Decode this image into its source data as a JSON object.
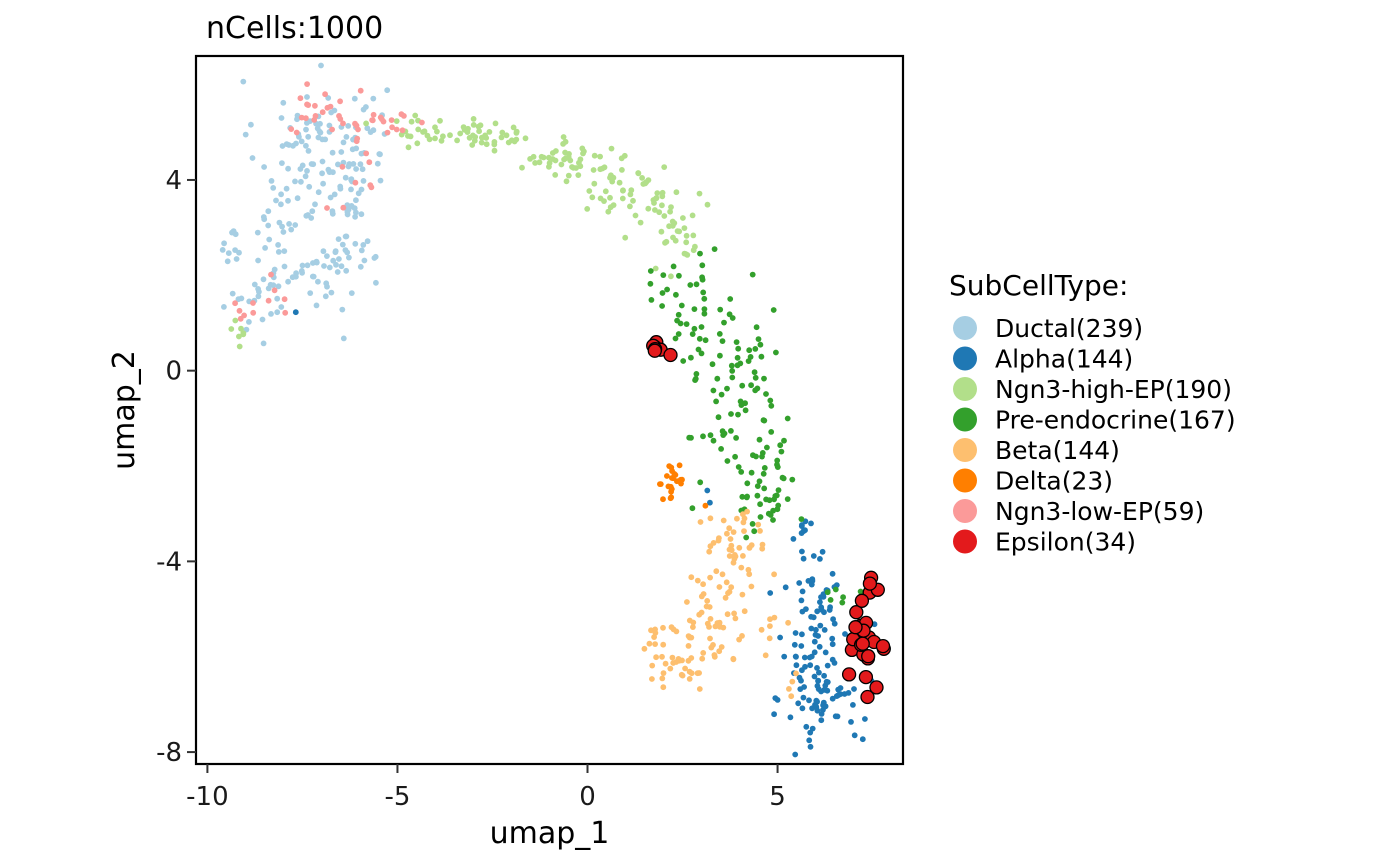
{
  "chart_data": {
    "type": "scatter",
    "title": "nCells:1000",
    "xlabel": "umap_1",
    "ylabel": "umap_2",
    "xlim": [
      -10.3,
      8.3
    ],
    "ylim": [
      -8.25,
      6.6
    ],
    "xticks": [
      -10,
      -5,
      0,
      5
    ],
    "yticks": [
      -8,
      -4,
      0,
      4
    ],
    "xtick_labels": [
      "-10",
      "-5",
      "0",
      "5"
    ],
    "ytick_labels": [
      "-8",
      "-4",
      "0",
      "4"
    ],
    "grid": false,
    "legend": {
      "title": "SubCellType:",
      "placement": "right"
    },
    "series": [
      {
        "name": "Ductal(239)",
        "color": "#A6CEE3",
        "highlight": false,
        "regions": [
          {
            "cx": -7.0,
            "cy": 4.7,
            "sx": 0.85,
            "sy": 0.7,
            "n": 95
          },
          {
            "cx": -6.3,
            "cy": 3.3,
            "sx": 0.4,
            "sy": 0.8,
            "n": 40
          },
          {
            "cx": -6.7,
            "cy": 2.0,
            "sx": 0.35,
            "sy": 0.5,
            "n": 25
          },
          {
            "cx": -8.0,
            "cy": 2.9,
            "sx": 0.45,
            "sy": 0.9,
            "n": 45
          },
          {
            "cx": -8.6,
            "cy": 1.5,
            "sx": 0.5,
            "sy": 0.3,
            "n": 20
          },
          {
            "cx": -9.3,
            "cy": 2.5,
            "sx": 0.12,
            "sy": 0.3,
            "n": 9
          },
          {
            "cx": -5.8,
            "cy": 5.1,
            "sx": 0.3,
            "sy": 0.35,
            "n": 5
          }
        ]
      },
      {
        "name": "Alpha(144)",
        "color": "#1F78B4",
        "highlight": false,
        "regions": [
          {
            "cx": 6.2,
            "cy": -6.7,
            "sx": 0.5,
            "sy": 0.6,
            "n": 80
          },
          {
            "cx": 5.9,
            "cy": -5.2,
            "sx": 0.45,
            "sy": 0.7,
            "n": 45
          },
          {
            "cx": 5.6,
            "cy": -3.3,
            "sx": 0.15,
            "sy": 0.3,
            "n": 9
          },
          {
            "cx": 6.4,
            "cy": -4.5,
            "sx": 0.2,
            "sy": 0.25,
            "n": 6
          },
          {
            "cx": 3.3,
            "cy": -2.6,
            "sx": 0.1,
            "sy": 0.1,
            "n": 2
          },
          {
            "cx": -7.7,
            "cy": 1.25,
            "sx": 0.02,
            "sy": 0.02,
            "n": 1
          },
          {
            "cx": 7.3,
            "cy": -5.0,
            "sx": 0.2,
            "sy": 0.2,
            "n": 1
          }
        ]
      },
      {
        "name": "Ngn3-high-EP(190)",
        "color": "#B2DF8A",
        "highlight": false,
        "regions": [
          {
            "cx": -3.0,
            "cy": 4.95,
            "sx": 1.1,
            "sy": 0.15,
            "n": 55
          },
          {
            "cx": -0.6,
            "cy": 4.5,
            "sx": 0.9,
            "sy": 0.22,
            "n": 45
          },
          {
            "cx": 1.1,
            "cy": 3.75,
            "sx": 0.7,
            "sy": 0.3,
            "n": 50
          },
          {
            "cx": 2.3,
            "cy": 2.8,
            "sx": 0.45,
            "sy": 0.4,
            "n": 30
          },
          {
            "cx": -9.1,
            "cy": 0.9,
            "sx": 0.25,
            "sy": 0.12,
            "n": 7
          },
          {
            "cx": -4.5,
            "cy": 5.2,
            "sx": 0.15,
            "sy": 0.15,
            "n": 3
          }
        ]
      },
      {
        "name": "Pre-endocrine(167)",
        "color": "#33A02C",
        "highlight": false,
        "regions": [
          {
            "cx": 2.9,
            "cy": 1.4,
            "sx": 0.5,
            "sy": 0.6,
            "n": 38
          },
          {
            "cx": 4.2,
            "cy": -0.5,
            "sx": 0.5,
            "sy": 0.7,
            "n": 50
          },
          {
            "cx": 4.7,
            "cy": -2.4,
            "sx": 0.4,
            "sy": 0.6,
            "n": 45
          },
          {
            "cx": 3.3,
            "cy": -0.9,
            "sx": 0.35,
            "sy": 0.8,
            "n": 20
          },
          {
            "cx": 6.8,
            "cy": -4.7,
            "sx": 0.25,
            "sy": 0.2,
            "n": 8
          },
          {
            "cx": 1.9,
            "cy": 2.0,
            "sx": 0.12,
            "sy": 0.5,
            "n": 6
          }
        ]
      },
      {
        "name": "Beta(144)",
        "color": "#FDBF6F",
        "highlight": false,
        "regions": [
          {
            "cx": 2.3,
            "cy": -6.0,
            "sx": 0.55,
            "sy": 0.35,
            "n": 42
          },
          {
            "cx": 3.3,
            "cy": -5.1,
            "sx": 0.45,
            "sy": 0.55,
            "n": 45
          },
          {
            "cx": 3.9,
            "cy": -3.8,
            "sx": 0.45,
            "sy": 0.55,
            "n": 45
          },
          {
            "cx": 4.8,
            "cy": -5.4,
            "sx": 0.3,
            "sy": 0.4,
            "n": 8
          },
          {
            "cx": 5.5,
            "cy": -6.6,
            "sx": 0.2,
            "sy": 0.2,
            "n": 4
          }
        ]
      },
      {
        "name": "Delta(23)",
        "color": "#FF7F00",
        "highlight": false,
        "regions": [
          {
            "cx": 2.2,
            "cy": -2.3,
            "sx": 0.2,
            "sy": 0.2,
            "n": 22
          },
          {
            "cx": 3.2,
            "cy": -2.8,
            "sx": 0.05,
            "sy": 0.05,
            "n": 1
          }
        ]
      },
      {
        "name": "Ngn3-low-EP(59)",
        "color": "#FB9A99",
        "highlight": false,
        "regions": [
          {
            "cx": -6.8,
            "cy": 5.4,
            "sx": 0.45,
            "sy": 0.25,
            "n": 22
          },
          {
            "cx": -5.2,
            "cy": 5.2,
            "sx": 0.5,
            "sy": 0.18,
            "n": 14
          },
          {
            "cx": -6.2,
            "cy": 4.1,
            "sx": 0.35,
            "sy": 0.6,
            "n": 12
          },
          {
            "cx": -9.1,
            "cy": 1.2,
            "sx": 0.2,
            "sy": 0.2,
            "n": 6
          },
          {
            "cx": -8.2,
            "cy": 1.6,
            "sx": 0.3,
            "sy": 0.25,
            "n": 5
          }
        ]
      },
      {
        "name": "Epsilon(34)",
        "color": "#E31A1C",
        "highlight": true,
        "regions": [
          {
            "cx": 7.3,
            "cy": -5.5,
            "sx": 0.17,
            "sy": 0.5,
            "n": 26
          },
          {
            "cx": 1.8,
            "cy": 0.5,
            "sx": 0.08,
            "sy": 0.08,
            "n": 6
          },
          {
            "cx": 2.2,
            "cy": 0.3,
            "sx": 0.04,
            "sy": 0.04,
            "n": 1
          },
          {
            "cx": 6.9,
            "cy": -6.4,
            "sx": 0.03,
            "sy": 0.03,
            "n": 1
          }
        ]
      }
    ]
  }
}
